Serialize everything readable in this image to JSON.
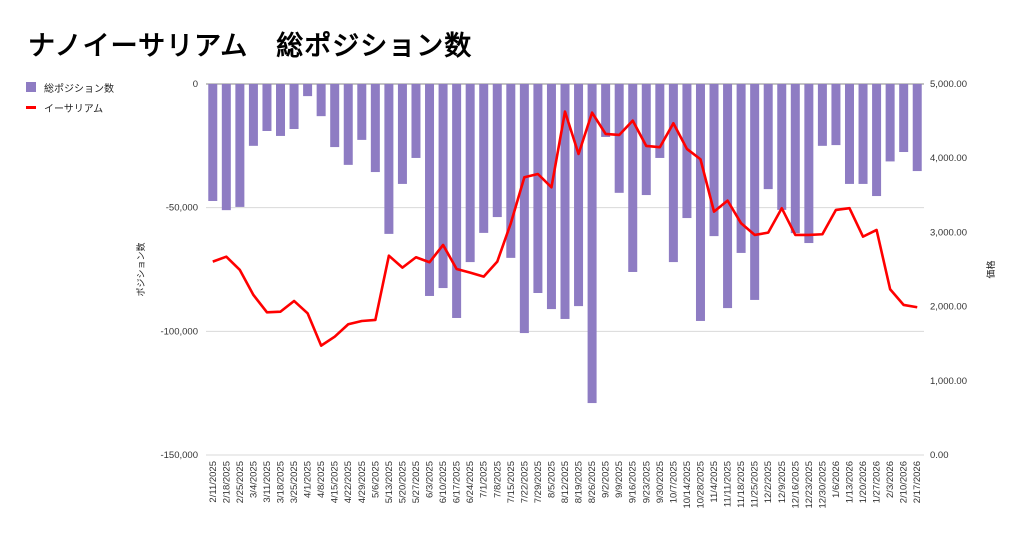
{
  "title": "ナノイーサリアム　総ポジション数",
  "legend": [
    {
      "label": "総ポジション数",
      "color": "#8e7cc3"
    },
    {
      "label": "イーサリアム",
      "color": "#ff0000"
    }
  ],
  "chart_data": {
    "type": "bar+line",
    "title": "ナノイーサリアム　総ポジション数",
    "legend_position": "top-left",
    "ylabel_left": "ポジション数",
    "ylabel_right": "価格",
    "ylim_left": [
      -150000,
      0
    ],
    "ylim_right": [
      0,
      5000
    ],
    "left_ticks": [
      "0",
      "-50,000",
      "-100,000",
      "-150,000"
    ],
    "left_tick_values": [
      0,
      -50000,
      -100000,
      -150000
    ],
    "right_ticks": [
      "5,000.00",
      "4,000.00",
      "3,000.00",
      "2,000.00",
      "1,000.00",
      "0.00"
    ],
    "right_tick_values": [
      5000,
      4000,
      3000,
      2000,
      1000,
      0
    ],
    "grid": true,
    "categories": [
      "2/11/2025",
      "2/18/2025",
      "2/25/2025",
      "3/4/2025",
      "3/11/2025",
      "3/18/2025",
      "3/25/2025",
      "4/1/2025",
      "4/8/2025",
      "4/15/2025",
      "4/22/2025",
      "4/29/2025",
      "5/6/2025",
      "5/13/2025",
      "5/20/2025",
      "5/27/2025",
      "6/3/2025",
      "6/10/2025",
      "6/17/2025",
      "6/24/2025",
      "7/1/2025",
      "7/8/2025",
      "7/15/2025",
      "7/22/2025",
      "7/29/2025",
      "8/5/2025",
      "8/12/2025",
      "8/19/2025",
      "8/26/2025",
      "9/2/2025",
      "9/9/2025",
      "9/16/2025",
      "9/23/2025",
      "9/30/2025",
      "10/7/2025",
      "10/14/2025",
      "10/28/2025",
      "11/4/2025",
      "11/11/2025",
      "11/18/2025",
      "11/25/2025",
      "12/2/2025",
      "12/9/2025",
      "12/16/2025",
      "12/23/2025",
      "12/30/2025",
      "1/6/2026",
      "1/13/2026",
      "1/20/2026",
      "1/27/2026",
      "2/3/2026",
      "2/10/2026",
      "2/17/2026"
    ],
    "series": [
      {
        "name": "総ポジション数",
        "type": "bar",
        "axis": "left",
        "color": "#8e7cc3",
        "values": [
          -47300,
          -51000,
          -49700,
          -25000,
          -19000,
          -21000,
          -18200,
          -4900,
          -13000,
          -25500,
          -32700,
          -22600,
          -35600,
          -60600,
          -40400,
          -29900,
          -85700,
          -82500,
          -94600,
          -72000,
          -60200,
          -53800,
          -70300,
          -100700,
          -84500,
          -91000,
          -95000,
          -89800,
          -129000,
          -21400,
          -44000,
          -76000,
          -44900,
          -29900,
          -72000,
          -54200,
          -95800,
          -61500,
          -90600,
          -68300,
          -87300,
          -42500,
          -50900,
          -60300,
          -64300,
          -25000,
          -24700,
          -40400,
          -40400,
          -45300,
          -31300,
          -27500,
          -35200
        ]
      },
      {
        "name": "イーサリアム",
        "type": "line",
        "axis": "right",
        "color": "#ff0000",
        "values": [
          2606,
          2673,
          2494,
          2157,
          1923,
          1932,
          2076,
          1910,
          1474,
          1595,
          1762,
          1806,
          1820,
          2686,
          2525,
          2665,
          2598,
          2831,
          2507,
          2458,
          2404,
          2606,
          3123,
          3743,
          3787,
          3608,
          4628,
          4057,
          4614,
          4327,
          4313,
          4506,
          4165,
          4148,
          4471,
          4125,
          3986,
          3280,
          3428,
          3123,
          2966,
          2997,
          3326,
          2966,
          2966,
          2975,
          3303,
          3326,
          2943,
          3033,
          2234,
          2022,
          1991
        ]
      }
    ]
  }
}
